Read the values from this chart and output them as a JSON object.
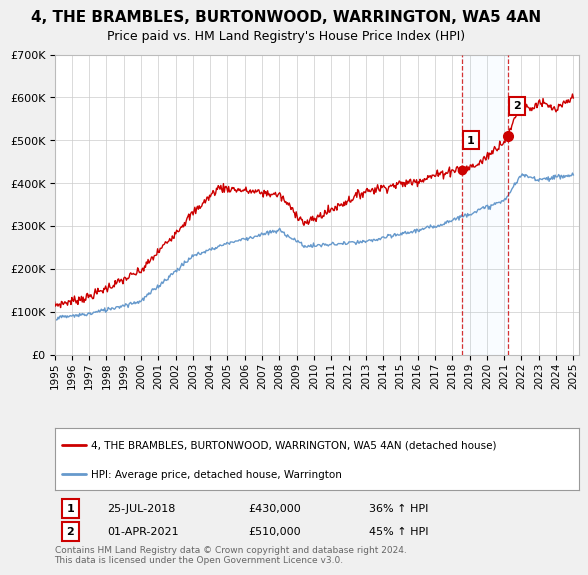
{
  "title": "4, THE BRAMBLES, BURTONWOOD, WARRINGTON, WA5 4AN",
  "subtitle": "Price paid vs. HM Land Registry's House Price Index (HPI)",
  "ylim": [
    0,
    700000
  ],
  "xlim_start": 1995.0,
  "xlim_end": 2025.3,
  "red_color": "#cc0000",
  "blue_color": "#6699cc",
  "marker1_x": 2018.57,
  "marker1_y": 430000,
  "marker2_x": 2021.25,
  "marker2_y": 510000,
  "legend_label_red": "4, THE BRAMBLES, BURTONWOOD, WARRINGTON, WA5 4AN (detached house)",
  "legend_label_blue": "HPI: Average price, detached house, Warrington",
  "annotation1_date": "25-JUL-2018",
  "annotation1_price": "£430,000",
  "annotation1_hpi": "36% ↑ HPI",
  "annotation2_date": "01-APR-2021",
  "annotation2_price": "£510,000",
  "annotation2_hpi": "45% ↑ HPI",
  "footer": "Contains HM Land Registry data © Crown copyright and database right 2024.\nThis data is licensed under the Open Government Licence v3.0.",
  "background_color": "#f0f0f0",
  "plot_bg_color": "#ffffff"
}
